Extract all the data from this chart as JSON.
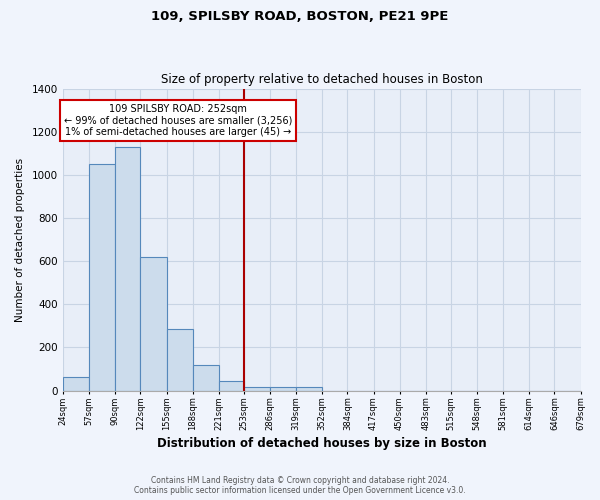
{
  "title": "109, SPILSBY ROAD, BOSTON, PE21 9PE",
  "subtitle": "Size of property relative to detached houses in Boston",
  "xlabel": "Distribution of detached houses by size in Boston",
  "ylabel": "Number of detached properties",
  "bar_values": [
    65,
    1050,
    1130,
    620,
    285,
    120,
    45,
    15,
    15,
    15,
    0,
    0,
    0,
    0,
    0,
    0,
    0,
    0,
    0,
    0
  ],
  "bin_edges": [
    24,
    57,
    90,
    122,
    155,
    188,
    221,
    253,
    286,
    319,
    352,
    384,
    417,
    450,
    483,
    515,
    548,
    581,
    614,
    646,
    679
  ],
  "bar_color": "#ccdcec",
  "bar_edgecolor": "#5588bb",
  "vline_x": 253,
  "vline_color": "#aa0000",
  "ylim": [
    0,
    1400
  ],
  "yticks": [
    0,
    200,
    400,
    600,
    800,
    1000,
    1200,
    1400
  ],
  "annotation_title": "109 SPILSBY ROAD: 252sqm",
  "annotation_line1": "← 99% of detached houses are smaller (3,256)",
  "annotation_line2": "1% of semi-detached houses are larger (45) →",
  "annotation_box_color": "#ffffff",
  "annotation_box_edgecolor": "#cc0000",
  "footer_line1": "Contains HM Land Registry data © Crown copyright and database right 2024.",
  "footer_line2": "Contains public sector information licensed under the Open Government Licence v3.0.",
  "plot_bg_color": "#e8eef8",
  "fig_bg_color": "#f0f4fc",
  "grid_color": "#c8d4e4"
}
